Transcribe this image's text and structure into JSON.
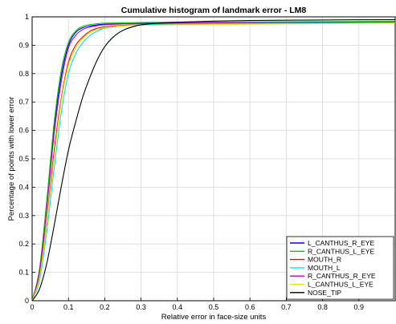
{
  "chart_data": {
    "type": "line",
    "title": "Cumulative histogram of landmark error - LM8",
    "xlabel": "Relative error in face-size units",
    "ylabel": "Percentage of points with lower error",
    "xlim": [
      0,
      1
    ],
    "ylim": [
      0,
      1
    ],
    "x_ticks": [
      "0",
      "0.1",
      "0.2",
      "0.3",
      "0.4",
      "0.5",
      "0.6",
      "0.7",
      "0.8",
      "0.9"
    ],
    "y_ticks": [
      "0",
      "0.1",
      "0.2",
      "0.3",
      "0.4",
      "0.5",
      "0.6",
      "0.7",
      "0.8",
      "0.9",
      "1"
    ],
    "grid": true,
    "legend_position": "bottom-right",
    "series": [
      {
        "name": "L_CANTHUS_R_EYE",
        "color": "#0000ff",
        "x": [
          0,
          0.02,
          0.04,
          0.06,
          0.08,
          0.1,
          0.12,
          0.14,
          0.16,
          0.18,
          0.2,
          0.25,
          0.3,
          0.4,
          0.6,
          0.8,
          1.0
        ],
        "y": [
          0,
          0.1,
          0.33,
          0.6,
          0.79,
          0.9,
          0.945,
          0.962,
          0.968,
          0.972,
          0.974,
          0.976,
          0.977,
          0.979,
          0.981,
          0.982,
          0.983
        ]
      },
      {
        "name": "R_CANTHUS_L_EYE",
        "color": "#00cc00",
        "x": [
          0,
          0.02,
          0.04,
          0.06,
          0.08,
          0.1,
          0.12,
          0.14,
          0.16,
          0.18,
          0.2,
          0.25,
          0.3,
          0.4,
          0.6,
          0.8,
          1.0
        ],
        "y": [
          0,
          0.11,
          0.35,
          0.62,
          0.81,
          0.91,
          0.95,
          0.967,
          0.973,
          0.976,
          0.978,
          0.979,
          0.98,
          0.981,
          0.982,
          0.983,
          0.984
        ]
      },
      {
        "name": "MOUTH_R",
        "color": "#ff0000",
        "x": [
          0,
          0.02,
          0.04,
          0.06,
          0.08,
          0.1,
          0.12,
          0.14,
          0.16,
          0.18,
          0.2,
          0.25,
          0.3,
          0.4,
          0.6,
          0.8,
          1.0
        ],
        "y": [
          0,
          0.09,
          0.28,
          0.52,
          0.71,
          0.84,
          0.9,
          0.93,
          0.95,
          0.96,
          0.965,
          0.97,
          0.972,
          0.974,
          0.976,
          0.978,
          0.98
        ]
      },
      {
        "name": "MOUTH_L",
        "color": "#00e5e5",
        "x": [
          0,
          0.02,
          0.04,
          0.06,
          0.08,
          0.1,
          0.12,
          0.14,
          0.16,
          0.18,
          0.2,
          0.25,
          0.3,
          0.4,
          0.6,
          0.8,
          1.0
        ],
        "y": [
          0,
          0.07,
          0.24,
          0.46,
          0.66,
          0.8,
          0.87,
          0.91,
          0.935,
          0.95,
          0.96,
          0.968,
          0.972,
          0.975,
          0.977,
          0.979,
          0.981
        ]
      },
      {
        "name": "R_CANTHUS_R_EYE",
        "color": "#bf00bf",
        "x": [
          0,
          0.02,
          0.04,
          0.06,
          0.08,
          0.1,
          0.12,
          0.14,
          0.16,
          0.18,
          0.2,
          0.25,
          0.3,
          0.4,
          0.6,
          0.8,
          1.0
        ],
        "y": [
          0,
          0.1,
          0.32,
          0.58,
          0.77,
          0.89,
          0.935,
          0.956,
          0.964,
          0.969,
          0.972,
          0.975,
          0.976,
          0.978,
          0.98,
          0.981,
          0.982
        ]
      },
      {
        "name": "L_CANTHUS_L_EYE",
        "color": "#e5e500",
        "x": [
          0,
          0.02,
          0.04,
          0.06,
          0.08,
          0.1,
          0.12,
          0.14,
          0.16,
          0.18,
          0.2,
          0.25,
          0.3,
          0.4,
          0.6,
          0.8,
          1.0
        ],
        "y": [
          0,
          0.08,
          0.27,
          0.5,
          0.7,
          0.83,
          0.89,
          0.925,
          0.945,
          0.955,
          0.962,
          0.968,
          0.97,
          0.972,
          0.974,
          0.976,
          0.978
        ]
      },
      {
        "name": "NOSE_TIP",
        "color": "#000000",
        "x": [
          0,
          0.02,
          0.04,
          0.06,
          0.08,
          0.1,
          0.12,
          0.14,
          0.16,
          0.18,
          0.2,
          0.22,
          0.24,
          0.26,
          0.28,
          0.3,
          0.35,
          0.4,
          0.5,
          0.6,
          0.8,
          1.0
        ],
        "y": [
          0,
          0.04,
          0.13,
          0.26,
          0.4,
          0.53,
          0.63,
          0.72,
          0.79,
          0.85,
          0.895,
          0.925,
          0.945,
          0.958,
          0.966,
          0.972,
          0.978,
          0.981,
          0.985,
          0.987,
          0.989,
          0.99
        ]
      }
    ]
  }
}
